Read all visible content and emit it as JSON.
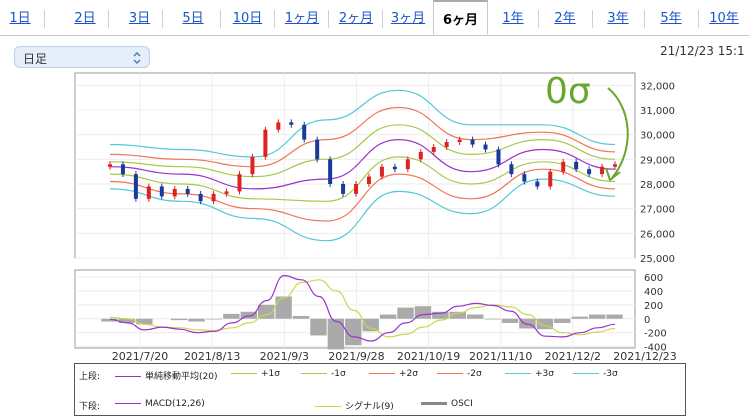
{
  "tabs": [
    {
      "label": "1日",
      "active": false
    },
    {
      "label": "2日",
      "active": false
    },
    {
      "label": "3日",
      "active": false
    },
    {
      "label": "5日",
      "active": false
    },
    {
      "label": "10日",
      "active": false
    },
    {
      "label": "1ヶ月",
      "active": false
    },
    {
      "label": "2ヶ月",
      "active": false
    },
    {
      "label": "3ヶ月",
      "active": false
    },
    {
      "label": "6ヶ月",
      "active": true
    },
    {
      "label": "1年",
      "active": false
    },
    {
      "label": "2年",
      "active": false
    },
    {
      "label": "3年",
      "active": false
    },
    {
      "label": "5年",
      "active": false
    },
    {
      "label": "10年",
      "active": false
    }
  ],
  "period_select": {
    "value": "日足"
  },
  "timestamp": "21/12/23 15:1",
  "annotation": {
    "text": "0σ",
    "color": "#6aa62e"
  },
  "chart_data": [
    {
      "type": "line",
      "panel": "upper",
      "x": [
        "2021/7/20",
        "2021/8/13",
        "2021/9/3",
        "2021/9/28",
        "2021/10/19",
        "2021/11/10",
        "2021/12/2",
        "2021/12/23"
      ],
      "yticks": [
        25000,
        26000,
        27000,
        28000,
        29000,
        30000,
        31000,
        32000
      ],
      "ytick_labels": [
        "25,000",
        "26,000",
        "27,000",
        "28,000",
        "29,000",
        "30,000",
        "31,000",
        "32,000"
      ],
      "ylim": [
        25000,
        32500
      ],
      "series": [
        {
          "name": "単純移動平均(20)",
          "color": "#9933cc",
          "values": [
            28700,
            28400,
            27800,
            28200,
            29800,
            28500,
            29400,
            28600
          ]
        },
        {
          "name": "+1σ",
          "color": "#a8c84a",
          "values": [
            28900,
            28700,
            28300,
            29000,
            30400,
            29200,
            29800,
            29000
          ]
        },
        {
          "name": "-1σ",
          "color": "#a8c84a",
          "values": [
            28400,
            28000,
            27400,
            27300,
            29100,
            28000,
            28900,
            28100
          ]
        },
        {
          "name": "+2σ",
          "color": "#ee7755",
          "values": [
            29200,
            29000,
            28700,
            29800,
            31100,
            29800,
            30100,
            29300
          ]
        },
        {
          "name": "-2σ",
          "color": "#ee7755",
          "values": [
            28100,
            27600,
            27000,
            26500,
            28400,
            27400,
            28600,
            27800
          ]
        },
        {
          "name": "+3σ",
          "color": "#55c8d8",
          "values": [
            29600,
            29400,
            29100,
            30600,
            31800,
            30400,
            30400,
            29600
          ]
        },
        {
          "name": "-3σ",
          "color": "#55c8d8",
          "values": [
            27800,
            27300,
            26600,
            25700,
            27700,
            26800,
            28200,
            27500
          ]
        }
      ],
      "candles_close": [
        28800,
        28400,
        27400,
        27900,
        27500,
        27800,
        27600,
        27300,
        27600,
        27700,
        28400,
        29100,
        30200,
        30500,
        30400,
        29800,
        29000,
        28000,
        27600,
        28000,
        28300,
        28700,
        28600,
        29000,
        29300,
        29500,
        29700,
        29800,
        29600,
        29400,
        28800,
        28400,
        28100,
        27900,
        28500,
        28900,
        28600,
        28400,
        28700,
        28800
      ]
    },
    {
      "type": "line",
      "panel": "lower",
      "yticks": [
        600,
        400,
        200,
        0,
        -200,
        -400
      ],
      "ytick_labels": [
        "600",
        "400",
        "200",
        "0",
        "-200",
        "-400"
      ],
      "ylim": [
        -420,
        700
      ],
      "series": [
        {
          "name": "MACD(12,26)",
          "color": "#9933cc",
          "values": [
            -10,
            -60,
            -160,
            -120,
            -150,
            -200,
            -180,
            -60,
            40,
            260,
            620,
            560,
            320,
            -40,
            -260,
            -320,
            -200,
            -60,
            60,
            80,
            180,
            220,
            190,
            110,
            -80,
            -250,
            -260,
            -200,
            -130,
            -80
          ]
        },
        {
          "name": "シグナル(9)",
          "color": "#c8d84a",
          "values": [
            20,
            0,
            -80,
            -120,
            -130,
            -160,
            -170,
            -130,
            -60,
            60,
            300,
            520,
            560,
            400,
            120,
            -140,
            -260,
            -220,
            -120,
            -20,
            80,
            160,
            200,
            170,
            60,
            -100,
            -200,
            -230,
            -190,
            -140
          ]
        },
        {
          "name": "OSCI",
          "color": "#999999",
          "values": [
            -40,
            -60,
            -80,
            0,
            -20,
            -40,
            -10,
            70,
            100,
            200,
            320,
            40,
            -240,
            -440,
            -380,
            -180,
            60,
            160,
            180,
            100,
            100,
            60,
            -10,
            -60,
            -140,
            -150,
            -60,
            30,
            60,
            60
          ]
        }
      ]
    }
  ],
  "legend": {
    "upper_label": "上段:",
    "lower_label": "下段:",
    "upper_items": [
      {
        "label": "単純移動平均(20)",
        "color": "#9933cc"
      },
      {
        "label": "+1σ",
        "color": "#a8c84a"
      },
      {
        "label": "-1σ",
        "color": "#a8c84a"
      },
      {
        "label": "+2σ",
        "color": "#ee7755"
      },
      {
        "label": "-2σ",
        "color": "#ee7755"
      },
      {
        "label": "+3σ",
        "color": "#55c8d8"
      },
      {
        "label": "-3σ",
        "color": "#55c8d8"
      }
    ],
    "lower_items": [
      {
        "label": "MACD(12,26)",
        "color": "#9933cc"
      },
      {
        "label": "シグナル(9)",
        "color": "#c8d84a"
      },
      {
        "label": "OSCI",
        "color": "#888888"
      }
    ]
  }
}
